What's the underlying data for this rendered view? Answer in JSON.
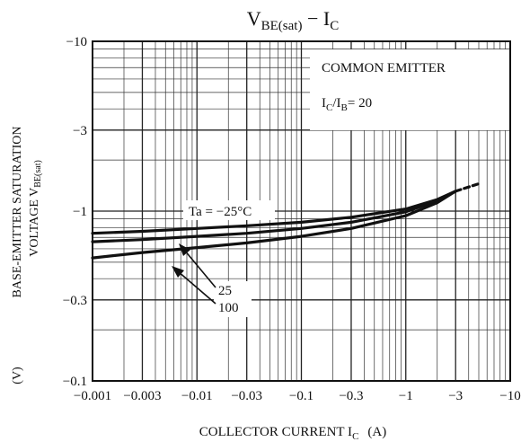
{
  "chart_data": {
    "type": "line",
    "title": {
      "main": "V",
      "main_sub": "BE(sat)",
      "sep": " − ",
      "var": "I",
      "var_sub": "C"
    },
    "ylabel": {
      "line1": "BASE-EMITTER SATURATION",
      "line2_text": "VOLTAGE  V",
      "line2_sub": "BE(sat)",
      "unit": "(V)"
    },
    "xlabel": {
      "text": "COLLECTOR CURRENT  I",
      "sub": "C",
      "unit": "(A)"
    },
    "x_scale": "log",
    "y_scale": "log",
    "xlim": [
      0.001,
      10
    ],
    "ylim": [
      0.1,
      10
    ],
    "x_ticks": [
      {
        "value": 0.001,
        "label": "−0.001"
      },
      {
        "value": 0.003,
        "label": "−0.003"
      },
      {
        "value": 0.01,
        "label": "−0.01"
      },
      {
        "value": 0.03,
        "label": "−0.03"
      },
      {
        "value": 0.1,
        "label": "−0.1"
      },
      {
        "value": 0.3,
        "label": "−0.3"
      },
      {
        "value": 1,
        "label": "−1"
      },
      {
        "value": 3,
        "label": "−3"
      },
      {
        "value": 10,
        "label": "−10"
      }
    ],
    "y_ticks": [
      {
        "value": 10,
        "label": "−10"
      },
      {
        "value": 3,
        "label": "−3"
      },
      {
        "value": 1,
        "label": "−1"
      },
      {
        "value": 0.3,
        "label": "−0.3"
      },
      {
        "value": 0.1,
        "label": "−0.1"
      }
    ],
    "grid": true,
    "conditions": {
      "line1": "COMMON EMITTER",
      "line2_a": "I",
      "line2_a_sub": "C",
      "line2_b": "/I",
      "line2_b_sub": "B",
      "line2_c": "= 20"
    },
    "series": [
      {
        "name": "Ta = −25°C",
        "x": [
          0.001,
          0.003,
          0.01,
          0.03,
          0.1,
          0.3,
          1,
          2,
          3
        ],
        "y": [
          0.74,
          0.76,
          0.79,
          0.82,
          0.86,
          0.92,
          1.03,
          1.17,
          1.31
        ]
      },
      {
        "name": "25",
        "x": [
          0.001,
          0.003,
          0.01,
          0.03,
          0.1,
          0.3,
          1,
          2,
          3
        ],
        "y": [
          0.66,
          0.68,
          0.71,
          0.74,
          0.79,
          0.86,
          0.99,
          1.15,
          1.31
        ]
      },
      {
        "name": "100",
        "x": [
          0.001,
          0.003,
          0.01,
          0.03,
          0.1,
          0.3,
          1,
          2,
          3
        ],
        "y": [
          0.53,
          0.57,
          0.61,
          0.65,
          0.71,
          0.79,
          0.94,
          1.12,
          1.31
        ]
      }
    ],
    "extension": {
      "x": [
        3,
        5
      ],
      "y": [
        1.31,
        1.45
      ]
    },
    "annotations": {
      "ta_label": "Ta = −25°C",
      "label_25": "25",
      "label_100": "100"
    }
  }
}
